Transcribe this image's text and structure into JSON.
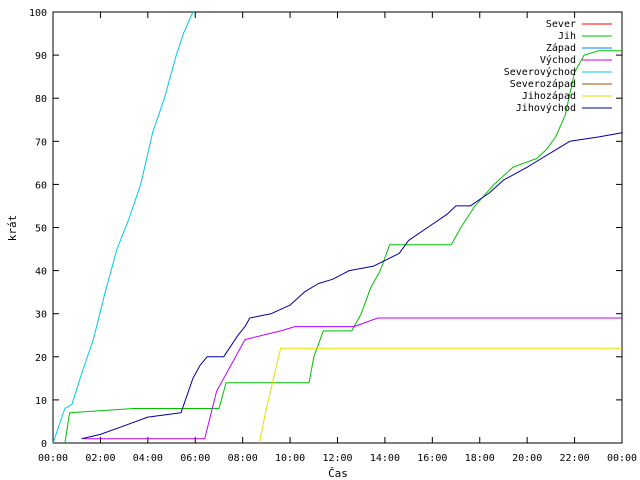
{
  "chart_data": {
    "type": "line",
    "xlabel": "Čas",
    "ylabel": "krát",
    "xlim": [
      0,
      24
    ],
    "ylim": [
      0,
      100
    ],
    "x_ticks": [
      {
        "value": 0,
        "label": "00:00"
      },
      {
        "value": 2,
        "label": "02:00"
      },
      {
        "value": 4,
        "label": "04:00"
      },
      {
        "value": 6,
        "label": "06:00"
      },
      {
        "value": 8,
        "label": "08:00"
      },
      {
        "value": 10,
        "label": "10:00"
      },
      {
        "value": 12,
        "label": "12:00"
      },
      {
        "value": 14,
        "label": "14:00"
      },
      {
        "value": 16,
        "label": "16:00"
      },
      {
        "value": 18,
        "label": "18:00"
      },
      {
        "value": 20,
        "label": "20:00"
      },
      {
        "value": 22,
        "label": "22:00"
      },
      {
        "value": 24,
        "label": "00:00"
      }
    ],
    "y_ticks": [
      {
        "value": 0,
        "label": "0"
      },
      {
        "value": 10,
        "label": "10"
      },
      {
        "value": 20,
        "label": "20"
      },
      {
        "value": 30,
        "label": "30"
      },
      {
        "value": 40,
        "label": "40"
      },
      {
        "value": 50,
        "label": "50"
      },
      {
        "value": 60,
        "label": "60"
      },
      {
        "value": 70,
        "label": "70"
      },
      {
        "value": 80,
        "label": "80"
      },
      {
        "value": 90,
        "label": "90"
      },
      {
        "value": 100,
        "label": "100"
      }
    ],
    "grid": false,
    "legend_position": "top-right",
    "series": [
      {
        "name": "Sever",
        "color": "#ff0000",
        "x": [],
        "y": []
      },
      {
        "name": "Jih",
        "color": "#00c000",
        "x": [
          0.5,
          0.7,
          3.4,
          7.0,
          7.3,
          7.6,
          10.8,
          11.0,
          11.4,
          11.6,
          12.6,
          13.0,
          13.4,
          13.8,
          14.2,
          14.7,
          16.8,
          17.2,
          17.8,
          18.6,
          19.4,
          20.4,
          20.8,
          21.2,
          21.6,
          22.0,
          22.4,
          23.0,
          23.5,
          24.0
        ],
        "y": [
          0,
          7,
          8,
          8,
          14,
          14,
          14,
          20,
          26,
          26,
          26,
          30,
          36,
          40,
          46,
          46,
          46,
          50,
          55,
          60,
          64,
          66,
          68,
          71,
          76,
          86,
          90,
          91,
          91,
          91
        ]
      },
      {
        "name": "Západ",
        "color": "#0080ff",
        "x": [],
        "y": []
      },
      {
        "name": "Východ",
        "color": "#c000ff",
        "x": [
          1.3,
          6.4,
          6.9,
          7.2,
          7.7,
          8.1,
          9.6,
          10.2,
          12.7,
          13.7,
          24.0
        ],
        "y": [
          1,
          1,
          12,
          15,
          20,
          24,
          26,
          27,
          27,
          29,
          29
        ]
      },
      {
        "name": "Severovýchod",
        "color": "#00c8e6",
        "x": [
          0,
          0.5,
          0.8,
          1.2,
          1.7,
          2.2,
          2.7,
          3.2,
          3.7,
          4.2,
          4.7,
          5.2,
          5.5,
          5.9
        ],
        "y": [
          0,
          8,
          9,
          16,
          24,
          35,
          45,
          52,
          60,
          72,
          80,
          90,
          95,
          100
        ]
      },
      {
        "name": "Severozápad",
        "color": "#a05000",
        "x": [],
        "y": []
      },
      {
        "name": "Jihozápad",
        "color": "#e0e000",
        "x": [
          8.7,
          9.0,
          9.3,
          9.6,
          24.0
        ],
        "y": [
          0,
          8,
          15,
          22,
          22
        ]
      },
      {
        "name": "Jihovýchod",
        "color": "#0000a0",
        "x": [
          1.2,
          2.0,
          3.0,
          4.0,
          5.4,
          5.9,
          6.2,
          6.5,
          7.2,
          7.8,
          8.1,
          8.3,
          9.2,
          10.0,
          10.6,
          11.2,
          11.8,
          12.5,
          13.5,
          14.6,
          15.0,
          15.8,
          16.6,
          17.0,
          17.6,
          18.4,
          19.0,
          20.0,
          20.6,
          21.2,
          21.8,
          23.0,
          24.0
        ],
        "y": [
          1,
          2,
          4,
          6,
          7,
          15,
          18,
          20,
          20,
          25,
          27,
          29,
          30,
          32,
          35,
          37,
          38,
          40,
          41,
          44,
          47,
          50,
          53,
          55,
          55,
          58,
          61,
          64,
          66,
          68,
          70,
          71,
          72
        ]
      }
    ]
  }
}
